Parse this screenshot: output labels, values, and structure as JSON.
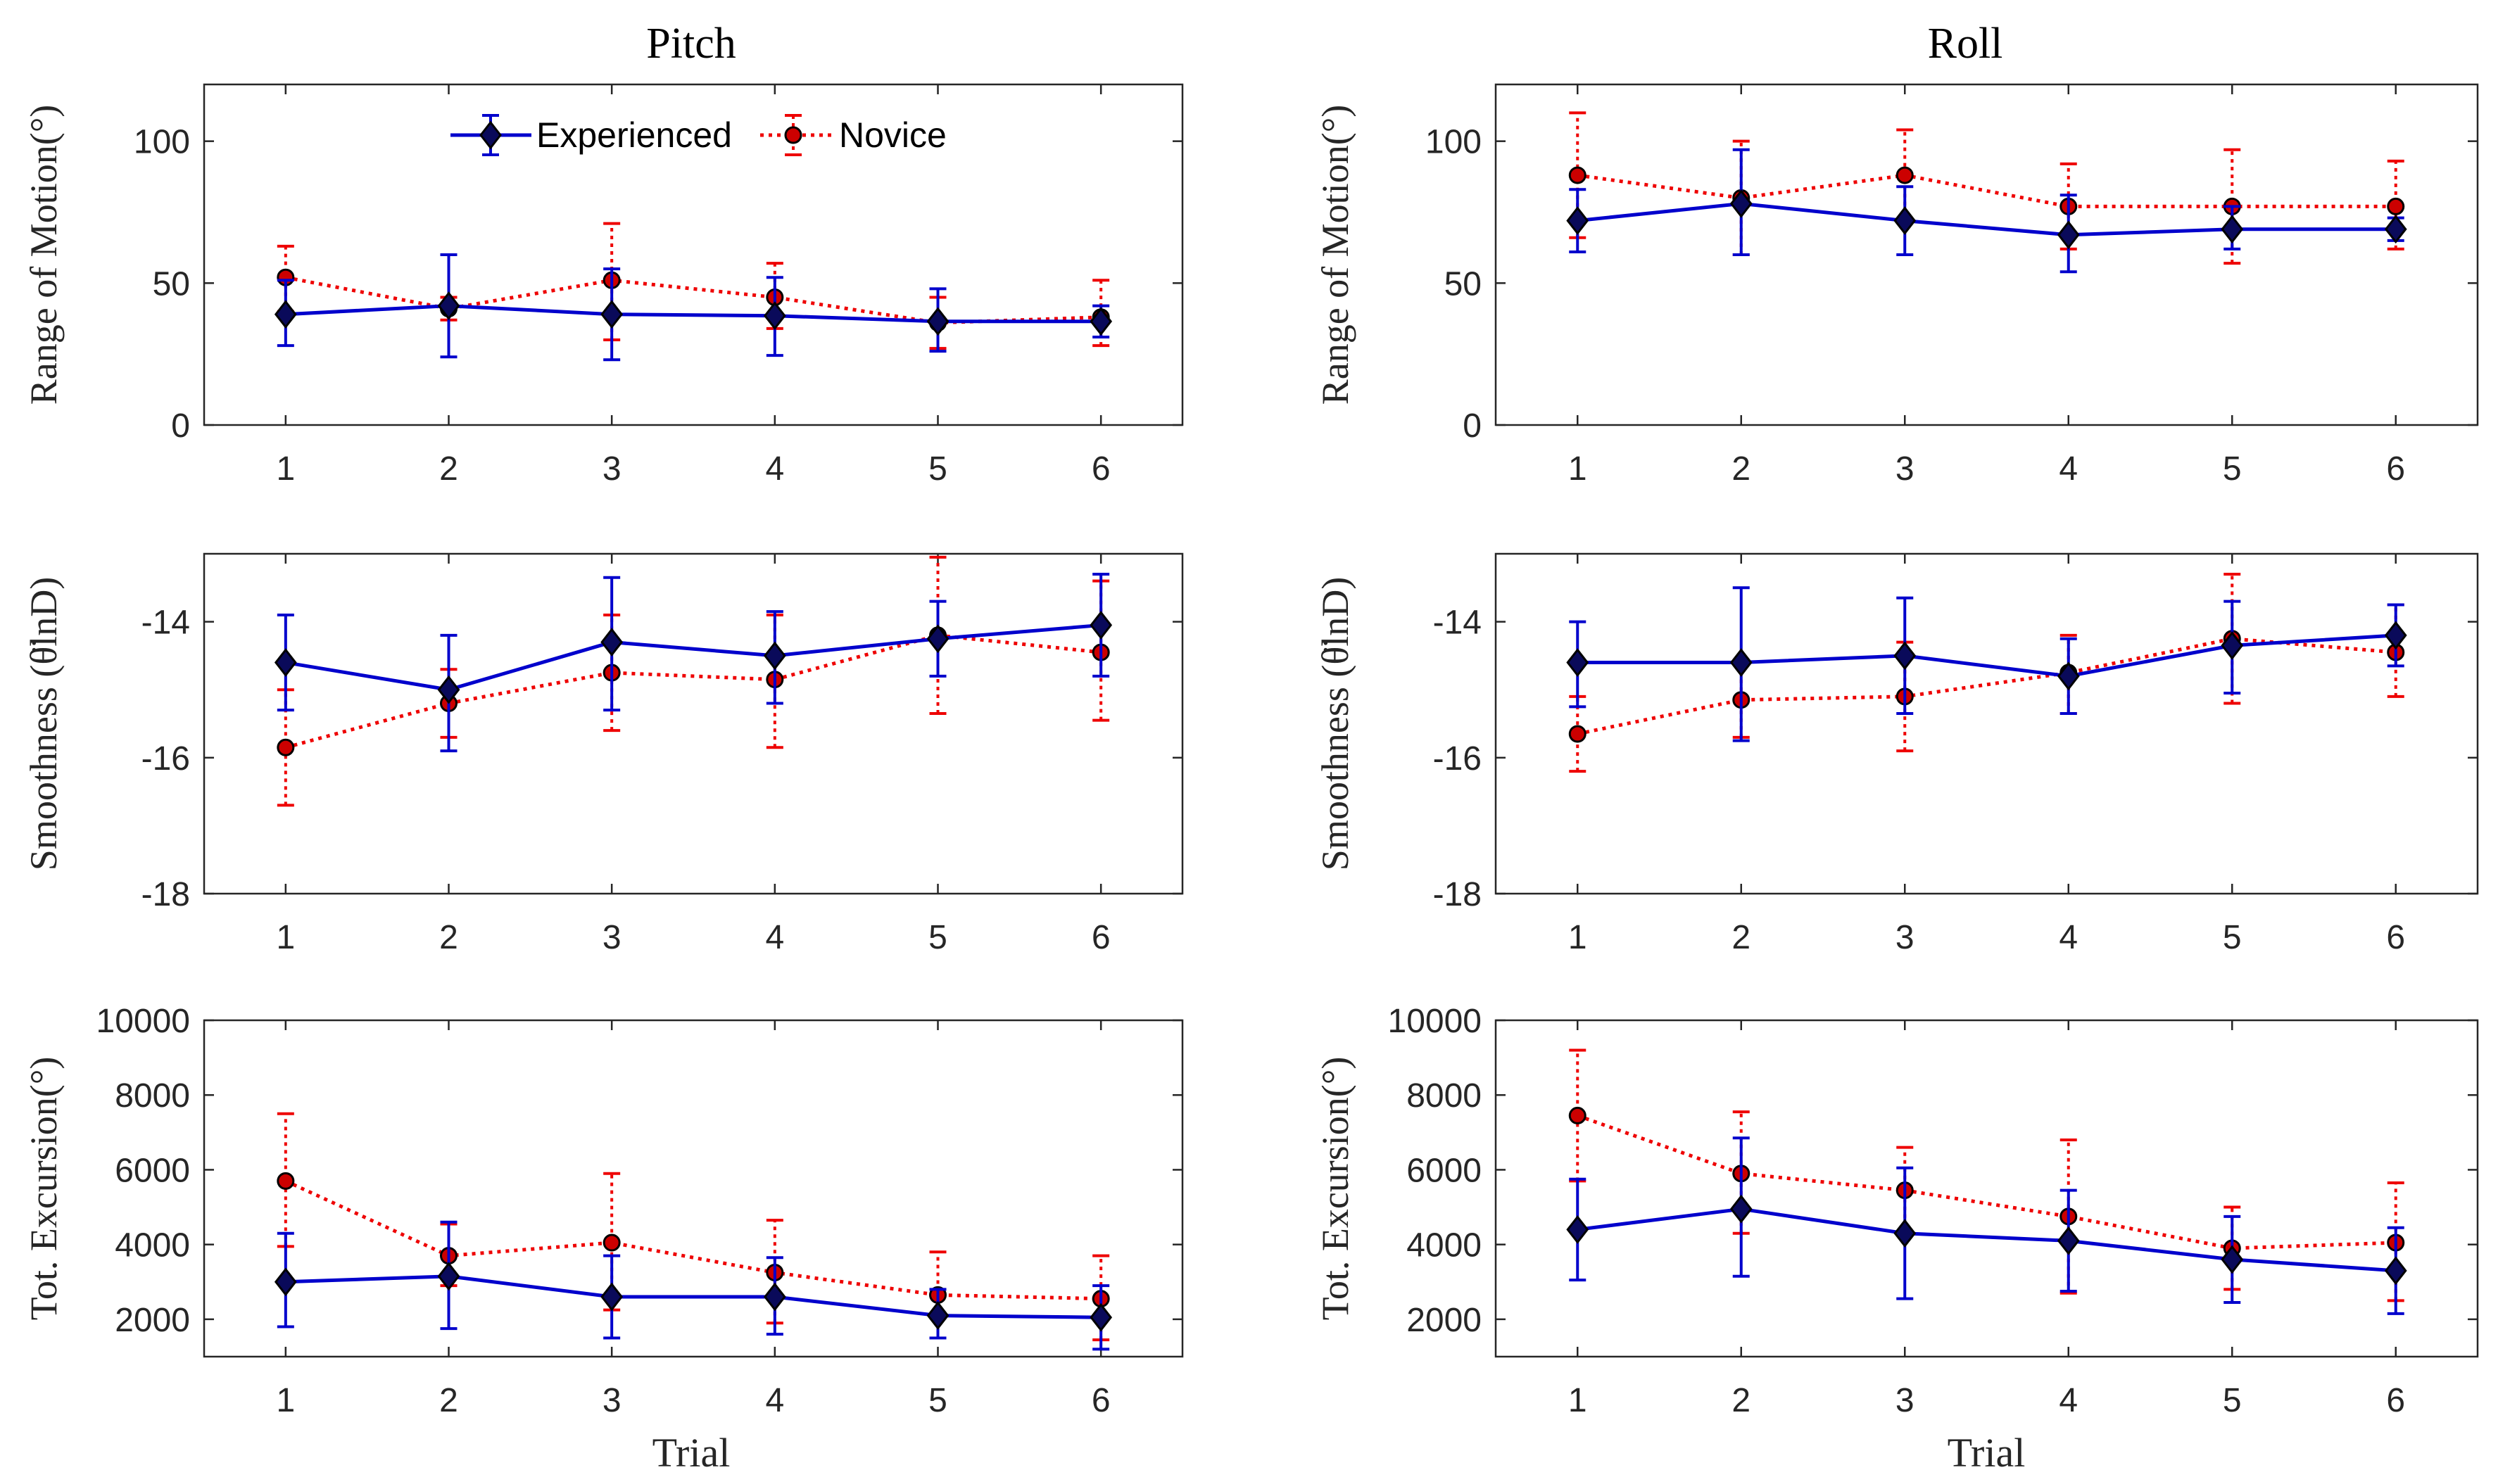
{
  "figure": {
    "xlabel": "Trial",
    "legend": {
      "experienced": "Experienced",
      "novice": "Novice"
    },
    "colors": {
      "experienced": "#0000cc",
      "novice": "#ee0000",
      "marker_fill_exp": "#0a0a5a",
      "marker_fill_nov": "#cc0000"
    }
  },
  "chart_data": [
    {
      "id": "pitch-rom",
      "type": "line",
      "column_title": "Pitch",
      "ylabel": "Range of Motion(°)",
      "ylim": [
        0,
        120
      ],
      "yticks": [
        0,
        50,
        100
      ],
      "x": [
        1,
        2,
        3,
        4,
        5,
        6
      ],
      "xticks": [
        "1",
        "2",
        "3",
        "4",
        "5",
        "6"
      ],
      "series": [
        {
          "name": "Experienced",
          "values": [
            39,
            42,
            39,
            38.5,
            36.5,
            36.5
          ],
          "err_lo": [
            28,
            24,
            23,
            24.5,
            26,
            31
          ],
          "err_hi": [
            51,
            60,
            55,
            52,
            48,
            42
          ]
        },
        {
          "name": "Novice",
          "values": [
            52,
            41,
            51,
            45,
            36,
            38
          ],
          "err_lo": [
            40,
            37,
            30,
            34,
            27,
            28
          ],
          "err_hi": [
            63,
            45,
            71,
            57,
            45,
            51
          ]
        }
      ]
    },
    {
      "id": "roll-rom",
      "type": "line",
      "column_title": "Roll",
      "ylabel": "Range of Motion(°)",
      "ylim": [
        0,
        120
      ],
      "yticks": [
        0,
        50,
        100
      ],
      "x": [
        1,
        2,
        3,
        4,
        5,
        6
      ],
      "xticks": [
        "1",
        "2",
        "3",
        "4",
        "5",
        "6"
      ],
      "series": [
        {
          "name": "Experienced",
          "values": [
            72,
            78,
            72,
            67,
            69,
            69
          ],
          "err_lo": [
            61,
            60,
            60,
            54,
            62,
            65
          ],
          "err_hi": [
            83,
            97,
            84,
            81,
            77,
            73
          ]
        },
        {
          "name": "Novice",
          "values": [
            88,
            80,
            88,
            77,
            77,
            77
          ],
          "err_lo": [
            66,
            60,
            72,
            62,
            57,
            62
          ],
          "err_hi": [
            110,
            100,
            104,
            92,
            97,
            93
          ]
        }
      ]
    },
    {
      "id": "pitch-smooth",
      "type": "line",
      "ylabel": "Smoothness (θ̈lnD)",
      "ylim": [
        -18,
        -13
      ],
      "yticks": [
        -18,
        -16,
        -14
      ],
      "x": [
        1,
        2,
        3,
        4,
        5,
        6
      ],
      "xticks": [
        "1",
        "2",
        "3",
        "4",
        "5",
        "6"
      ],
      "series": [
        {
          "name": "Experienced",
          "values": [
            -14.6,
            -15.0,
            -14.3,
            -14.5,
            -14.25,
            -14.05
          ],
          "err_lo": [
            -15.3,
            -15.9,
            -15.3,
            -15.2,
            -14.8,
            -14.8
          ],
          "err_hi": [
            -13.9,
            -14.2,
            -13.35,
            -13.85,
            -13.7,
            -13.3
          ]
        },
        {
          "name": "Novice",
          "values": [
            -15.85,
            -15.2,
            -14.75,
            -14.85,
            -14.2,
            -14.45
          ],
          "err_lo": [
            -16.7,
            -15.7,
            -15.6,
            -15.85,
            -15.35,
            -15.45
          ],
          "err_hi": [
            -15.0,
            -14.7,
            -13.9,
            -13.9,
            -13.05,
            -13.4
          ]
        }
      ]
    },
    {
      "id": "roll-smooth",
      "type": "line",
      "ylabel": "Smoothness (θ̈lnD)",
      "ylim": [
        -18,
        -13
      ],
      "yticks": [
        -18,
        -16,
        -14
      ],
      "x": [
        1,
        2,
        3,
        4,
        5,
        6
      ],
      "xticks": [
        "1",
        "2",
        "3",
        "4",
        "5",
        "6"
      ],
      "series": [
        {
          "name": "Experienced",
          "values": [
            -14.6,
            -14.6,
            -14.5,
            -14.8,
            -14.35,
            -14.2
          ],
          "err_lo": [
            -15.25,
            -15.75,
            -15.35,
            -15.35,
            -15.05,
            -14.65
          ],
          "err_hi": [
            -14.0,
            -13.5,
            -13.65,
            -14.25,
            -13.7,
            -13.75
          ]
        },
        {
          "name": "Novice",
          "values": [
            -15.65,
            -15.15,
            -15.1,
            -14.75,
            -14.25,
            -14.45
          ],
          "err_lo": [
            -16.2,
            -15.7,
            -15.9,
            -15.35,
            -15.2,
            -15.1
          ],
          "err_hi": [
            -15.1,
            -14.6,
            -14.3,
            -14.2,
            -13.3,
            -13.75
          ]
        }
      ]
    },
    {
      "id": "pitch-exc",
      "type": "line",
      "ylabel": "Tot. Excursion(°)",
      "ylim": [
        1000,
        10000
      ],
      "yticks": [
        2000,
        4000,
        6000,
        8000,
        10000
      ],
      "x": [
        1,
        2,
        3,
        4,
        5,
        6
      ],
      "xticks": [
        "1",
        "2",
        "3",
        "4",
        "5",
        "6"
      ],
      "series": [
        {
          "name": "Experienced",
          "values": [
            3000,
            3150,
            2600,
            2600,
            2100,
            2050
          ],
          "err_lo": [
            1800,
            1750,
            1500,
            1600,
            1500,
            1200
          ],
          "err_hi": [
            4300,
            4600,
            3700,
            3650,
            2800,
            2900
          ]
        },
        {
          "name": "Novice",
          "values": [
            5700,
            3700,
            4050,
            3250,
            2650,
            2550
          ],
          "err_lo": [
            3950,
            2900,
            2250,
            1900,
            1500,
            1450
          ],
          "err_hi": [
            7500,
            4550,
            5900,
            4650,
            3800,
            3700
          ]
        }
      ]
    },
    {
      "id": "roll-exc",
      "type": "line",
      "ylabel": "Tot. Excursion(°)",
      "ylim": [
        1000,
        10000
      ],
      "yticks": [
        2000,
        4000,
        6000,
        8000,
        10000
      ],
      "x": [
        1,
        2,
        3,
        4,
        5,
        6
      ],
      "xticks": [
        "1",
        "2",
        "3",
        "4",
        "5",
        "6"
      ],
      "series": [
        {
          "name": "Experienced",
          "values": [
            4400,
            4950,
            4300,
            4100,
            3600,
            3300
          ],
          "err_lo": [
            3050,
            3150,
            2550,
            2750,
            2450,
            2150
          ],
          "err_hi": [
            5750,
            6850,
            6050,
            5450,
            4750,
            4450
          ]
        },
        {
          "name": "Novice",
          "values": [
            7450,
            5900,
            5450,
            4750,
            3900,
            4050
          ],
          "err_lo": [
            5700,
            4300,
            4300,
            2700,
            2800,
            2500
          ],
          "err_hi": [
            9200,
            7550,
            6600,
            6800,
            5000,
            5650
          ]
        }
      ]
    }
  ]
}
